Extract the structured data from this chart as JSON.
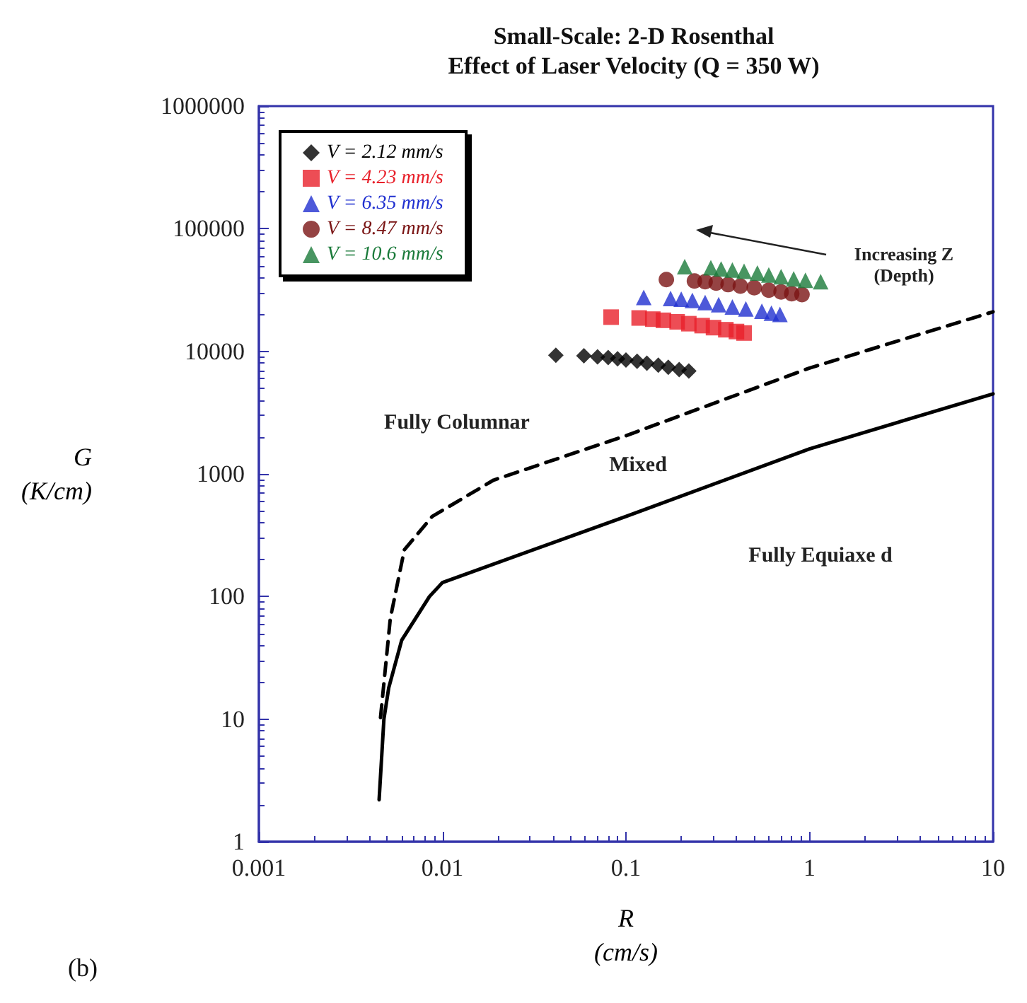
{
  "chart_data": {
    "type": "scatter",
    "title": "Small-Scale: 2-D Rosenthal\nEffect of Laser Velocity (Q = 350 W)",
    "xlabel": "R\n(cm/s)",
    "ylabel": "G\n(K/cm)",
    "log": "xy",
    "xlim": [
      0.001,
      10
    ],
    "ylim": [
      1,
      1000000
    ],
    "xticks": [
      0.001,
      0.01,
      0.1,
      1,
      10
    ],
    "yticks": [
      1,
      10,
      100,
      1000,
      10000,
      100000,
      1000000
    ],
    "legend": "top left",
    "annotations": [
      "Fully Columnar",
      "Mixed",
      "Fully Equiaxe d",
      "Increasing Z\n(Depth)",
      "(b)"
    ],
    "series": [
      {
        "type": "line",
        "color": "#000000",
        "line_style": "solid",
        "marker": "none",
        "x": [
          0.00452,
          0.0048,
          0.0051,
          0.006,
          0.0085,
          0.01,
          0.1,
          1,
          10
        ],
        "values": [
          2.2,
          10,
          18,
          44,
          100,
          130,
          450,
          1600,
          4500
        ]
      },
      {
        "type": "line",
        "color": "#000000",
        "line_style": "dashed",
        "marker": "none",
        "x": [
          0.0046,
          0.0052,
          0.0062,
          0.0088,
          0.019,
          0.1,
          1,
          10
        ],
        "values": [
          10.3,
          66,
          240,
          450,
          890,
          2050,
          7300,
          21000
        ]
      },
      {
        "name": "V = 2.12 mm/s",
        "color": "#000000",
        "marker": "diamond",
        "x": [
          0.0415,
          0.059,
          0.07,
          0.08,
          0.09,
          0.1,
          0.115,
          0.13,
          0.15,
          0.17,
          0.195,
          0.22
        ],
        "values": [
          9300,
          9200,
          9000,
          8900,
          8700,
          8500,
          8300,
          8000,
          7700,
          7400,
          7100,
          6900
        ]
      },
      {
        "name": "V = 4.23 mm/s",
        "color": "#e8202a",
        "marker": "square",
        "x": [
          0.083,
          0.118,
          0.14,
          0.16,
          0.19,
          0.22,
          0.26,
          0.3,
          0.35,
          0.4,
          0.44
        ],
        "values": [
          19000,
          18700,
          18300,
          17900,
          17400,
          16800,
          16200,
          15600,
          15000,
          14500,
          14100
        ]
      },
      {
        "name": "V = 6.35 mm/s",
        "color": "#2030d0",
        "marker": "triangle",
        "x": [
          0.125,
          0.175,
          0.2,
          0.23,
          0.27,
          0.32,
          0.38,
          0.45,
          0.55,
          0.62,
          0.69
        ],
        "values": [
          27500,
          27000,
          26600,
          26000,
          25000,
          24000,
          23000,
          22200,
          21200,
          20500,
          20000
        ]
      },
      {
        "name": "V = 8.47 mm/s",
        "color": "#7a1414",
        "marker": "circle",
        "x": [
          0.166,
          0.236,
          0.27,
          0.31,
          0.36,
          0.42,
          0.5,
          0.6,
          0.7,
          0.8,
          0.91
        ],
        "values": [
          38500,
          37500,
          37000,
          36000,
          35000,
          34000,
          33000,
          31500,
          30500,
          29500,
          29000
        ]
      },
      {
        "name": "V = 10.6 mm/s",
        "color": "#1a7a3a",
        "marker": "triangle",
        "x": [
          0.209,
          0.29,
          0.33,
          0.38,
          0.44,
          0.52,
          0.6,
          0.7,
          0.82,
          0.95,
          1.15
        ],
        "values": [
          49000,
          48000,
          47000,
          46000,
          45000,
          43500,
          42000,
          40500,
          39000,
          38000,
          37000
        ]
      }
    ]
  }
}
